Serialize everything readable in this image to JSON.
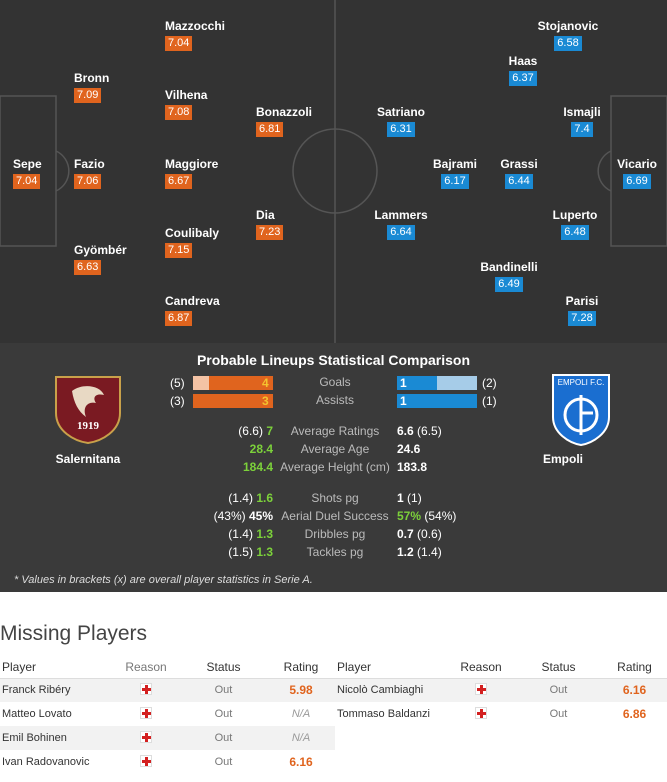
{
  "home_team": {
    "name": "Salernitana",
    "crest_year": "1919",
    "color": "#e0641e"
  },
  "away_team": {
    "name": "Empoli",
    "crest_text": "EMPOLI F.C.",
    "color": "#1a8ad4"
  },
  "lineup": {
    "home": [
      {
        "name": "Sepe",
        "rating": "7.04"
      },
      {
        "name": "Bronn",
        "rating": "7.09"
      },
      {
        "name": "Fazio",
        "rating": "7.06"
      },
      {
        "name": "Gyömbér",
        "rating": "6.63"
      },
      {
        "name": "Mazzocchi",
        "rating": "7.04"
      },
      {
        "name": "Vilhena",
        "rating": "7.08"
      },
      {
        "name": "Maggiore",
        "rating": "6.67"
      },
      {
        "name": "Coulibaly",
        "rating": "7.15"
      },
      {
        "name": "Candreva",
        "rating": "6.87"
      },
      {
        "name": "Bonazzoli",
        "rating": "6.81"
      },
      {
        "name": "Dia",
        "rating": "7.23"
      }
    ],
    "away": [
      {
        "name": "Vicario",
        "rating": "6.69"
      },
      {
        "name": "Stojanovic",
        "rating": "6.58"
      },
      {
        "name": "Ismajli",
        "rating": "7.4"
      },
      {
        "name": "Luperto",
        "rating": "6.48"
      },
      {
        "name": "Parisi",
        "rating": "7.28"
      },
      {
        "name": "Haas",
        "rating": "6.37"
      },
      {
        "name": "Grassi",
        "rating": "6.44"
      },
      {
        "name": "Bandinelli",
        "rating": "6.49"
      },
      {
        "name": "Bajrami",
        "rating": "6.17"
      },
      {
        "name": "Satriano",
        "rating": "6.31"
      },
      {
        "name": "Lammers",
        "rating": "6.64"
      }
    ]
  },
  "comparison": {
    "title": "Probable Lineups Statistical Comparison",
    "goals": {
      "label": "Goals",
      "home_overall": "(5)",
      "home": "4",
      "away": "1",
      "away_overall": "(2)"
    },
    "assists": {
      "label": "Assists",
      "home_overall": "(3)",
      "home": "3",
      "away": "1",
      "away_overall": "(1)"
    },
    "stats": [
      {
        "label": "Average Ratings",
        "home_overall": "(6.6)",
        "home": "7",
        "away": "6.6",
        "away_overall": "(6.5)"
      },
      {
        "label": "Average Age",
        "home_overall": "",
        "home": "28.4",
        "away": "24.6",
        "away_overall": ""
      },
      {
        "label": "Average Height (cm)",
        "home_overall": "",
        "home": "184.4",
        "away": "183.8",
        "away_overall": ""
      },
      {
        "label": "Shots pg",
        "home_overall": "(1.4)",
        "home": "1.6",
        "away": "1",
        "away_overall": "(1)"
      },
      {
        "label": "Aerial Duel Success",
        "home_overall": "(43%)",
        "home": "45%",
        "away": "57%",
        "away_overall": "(54%)"
      },
      {
        "label": "Dribbles pg",
        "home_overall": "(1.4)",
        "home": "1.3",
        "away": "0.7",
        "away_overall": "(0.6)"
      },
      {
        "label": "Tackles pg",
        "home_overall": "(1.5)",
        "home": "1.3",
        "away": "1.2",
        "away_overall": "(1.4)"
      }
    ],
    "footnote": "* Values in brackets (x) are overall player statistics in Serie A."
  },
  "missing": {
    "title": "Missing Players",
    "headers": {
      "player": "Player",
      "reason": "Reason",
      "status": "Status",
      "rating": "Rating"
    },
    "home": [
      {
        "player": "Franck Ribéry",
        "status": "Out",
        "rating": "5.98"
      },
      {
        "player": "Matteo Lovato",
        "status": "Out",
        "rating": "N/A"
      },
      {
        "player": "Emil Bohinen",
        "status": "Out",
        "rating": "N/A"
      },
      {
        "player": "Ivan Radovanovic",
        "status": "Out",
        "rating": "6.16"
      }
    ],
    "away": [
      {
        "player": "Nicolò Cambiaghi",
        "status": "Out",
        "rating": "6.16"
      },
      {
        "player": "Tommaso Baldanzi",
        "status": "Out",
        "rating": "6.86"
      }
    ]
  }
}
